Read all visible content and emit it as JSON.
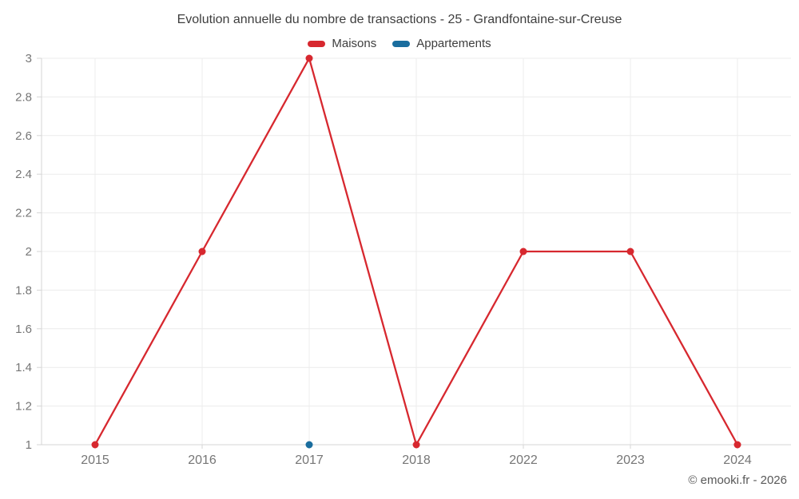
{
  "header": {
    "title": "Evolution annuelle du nombre de transactions - 25 - Grandfontaine-sur-Creuse"
  },
  "legend": {
    "items": [
      {
        "label": "Maisons",
        "color": "#d7282f"
      },
      {
        "label": "Appartements",
        "color": "#1a6d9e"
      }
    ]
  },
  "footer": {
    "copyright": "© emooki.fr - 2026"
  },
  "chart_data": {
    "type": "line",
    "title": "Evolution annuelle du nombre de transactions - 25 - Grandfontaine-sur-Creuse",
    "categories": [
      "2015",
      "2016",
      "2017",
      "2018",
      "2022",
      "2023",
      "2024"
    ],
    "series": [
      {
        "name": "Maisons",
        "color": "#d7282f",
        "values": [
          1,
          2,
          3,
          1,
          2,
          2,
          1
        ]
      },
      {
        "name": "Appartements",
        "color": "#1a6d9e",
        "values": [
          null,
          null,
          1,
          null,
          null,
          null,
          null
        ]
      }
    ],
    "xlabel": "",
    "ylabel": "",
    "ylim": [
      1,
      3
    ],
    "ytick_step": 0.2,
    "grid": true,
    "legend_position": "top",
    "colors": {
      "gridline": "#ececec",
      "axis_line": "#d6d6d6",
      "tick_label": "#767676"
    }
  }
}
